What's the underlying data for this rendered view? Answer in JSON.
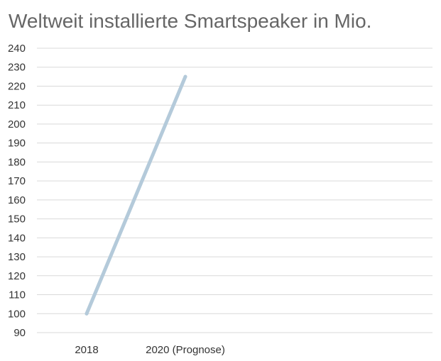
{
  "chart_data": {
    "type": "line",
    "title": "Weltweit installierte Smartspeaker in Mio.",
    "xlabel": "",
    "ylabel": "",
    "categories": [
      "2018",
      "2020 (Prognose)"
    ],
    "series": [
      {
        "values": [
          100,
          225
        ],
        "color": "#b4cada"
      }
    ],
    "ylim": [
      90,
      240
    ],
    "yticks": [
      "90",
      "100",
      "110",
      "120",
      "130",
      "140",
      "150",
      "160",
      "170",
      "180",
      "190",
      "200",
      "210",
      "220",
      "230",
      "240"
    ],
    "grid": true,
    "legend": "none",
    "colors": {
      "gridline": "#d9d9d9",
      "text": "#333333",
      "title": "#666666"
    }
  }
}
